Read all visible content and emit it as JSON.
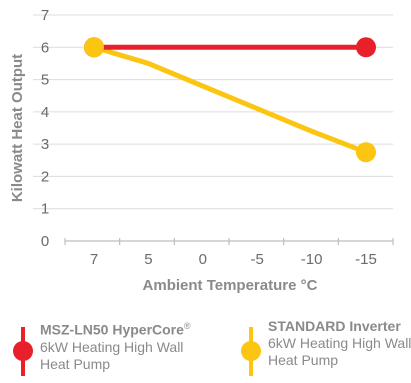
{
  "chart_data": {
    "type": "line",
    "x_categories": [
      "7",
      "5",
      "0",
      "-5",
      "-10",
      "-15"
    ],
    "ylabel": "Kilowatt Heat Output",
    "xlabel": "Ambient Temperature °C",
    "ylim": [
      0,
      7
    ],
    "y_ticks": [
      "0",
      "1",
      "2",
      "3",
      "4",
      "5",
      "6",
      "7"
    ],
    "grid": true,
    "series": [
      {
        "name": "MSZ-LN50 HyperCore",
        "name_superscript": "®",
        "description": "6kW Heating High Wall Heat Pump",
        "color": "#e8202a",
        "values": [
          6,
          6,
          6,
          6,
          6,
          6
        ]
      },
      {
        "name": "STANDARD Inverter",
        "description": "6kW Heating High Wall Heat Pump",
        "color": "#fcc512",
        "values": [
          6,
          5.5,
          4.8,
          4.1,
          3.4,
          2.75
        ]
      }
    ]
  }
}
